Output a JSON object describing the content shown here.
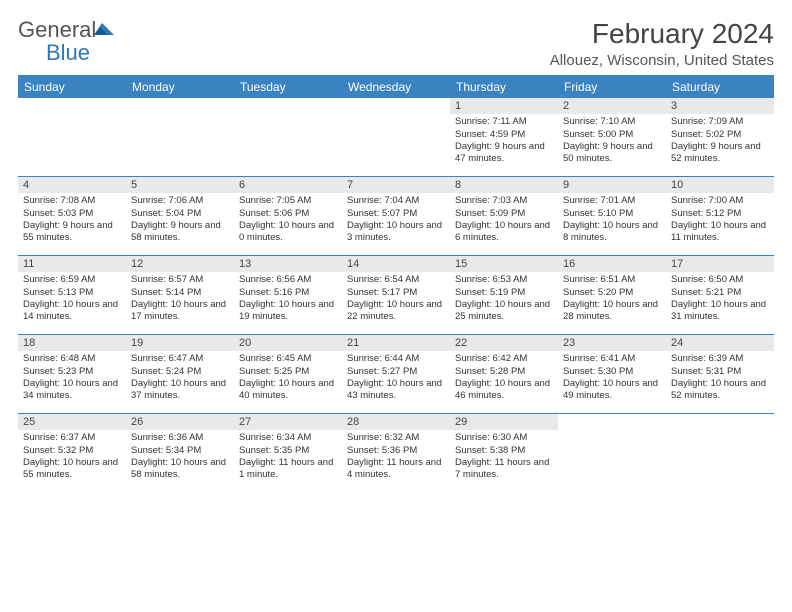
{
  "logo": {
    "text1": "General",
    "text2": "Blue"
  },
  "title": "February 2024",
  "location": "Allouez, Wisconsin, United States",
  "colors": {
    "header_bg": "#3b83c0",
    "header_text": "#ffffff",
    "row_border": "#3b83c0",
    "daynum_bg": "#e9e9e9",
    "text": "#333333",
    "logo_gray": "#555555",
    "logo_blue": "#2b78bc"
  },
  "day_headers": [
    "Sunday",
    "Monday",
    "Tuesday",
    "Wednesday",
    "Thursday",
    "Friday",
    "Saturday"
  ],
  "weeks": [
    [
      {
        "n": "",
        "sunrise": "",
        "sunset": "",
        "daylight": ""
      },
      {
        "n": "",
        "sunrise": "",
        "sunset": "",
        "daylight": ""
      },
      {
        "n": "",
        "sunrise": "",
        "sunset": "",
        "daylight": ""
      },
      {
        "n": "",
        "sunrise": "",
        "sunset": "",
        "daylight": ""
      },
      {
        "n": "1",
        "sunrise": "Sunrise: 7:11 AM",
        "sunset": "Sunset: 4:59 PM",
        "daylight": "Daylight: 9 hours and 47 minutes."
      },
      {
        "n": "2",
        "sunrise": "Sunrise: 7:10 AM",
        "sunset": "Sunset: 5:00 PM",
        "daylight": "Daylight: 9 hours and 50 minutes."
      },
      {
        "n": "3",
        "sunrise": "Sunrise: 7:09 AM",
        "sunset": "Sunset: 5:02 PM",
        "daylight": "Daylight: 9 hours and 52 minutes."
      }
    ],
    [
      {
        "n": "4",
        "sunrise": "Sunrise: 7:08 AM",
        "sunset": "Sunset: 5:03 PM",
        "daylight": "Daylight: 9 hours and 55 minutes."
      },
      {
        "n": "5",
        "sunrise": "Sunrise: 7:06 AM",
        "sunset": "Sunset: 5:04 PM",
        "daylight": "Daylight: 9 hours and 58 minutes."
      },
      {
        "n": "6",
        "sunrise": "Sunrise: 7:05 AM",
        "sunset": "Sunset: 5:06 PM",
        "daylight": "Daylight: 10 hours and 0 minutes."
      },
      {
        "n": "7",
        "sunrise": "Sunrise: 7:04 AM",
        "sunset": "Sunset: 5:07 PM",
        "daylight": "Daylight: 10 hours and 3 minutes."
      },
      {
        "n": "8",
        "sunrise": "Sunrise: 7:03 AM",
        "sunset": "Sunset: 5:09 PM",
        "daylight": "Daylight: 10 hours and 6 minutes."
      },
      {
        "n": "9",
        "sunrise": "Sunrise: 7:01 AM",
        "sunset": "Sunset: 5:10 PM",
        "daylight": "Daylight: 10 hours and 8 minutes."
      },
      {
        "n": "10",
        "sunrise": "Sunrise: 7:00 AM",
        "sunset": "Sunset: 5:12 PM",
        "daylight": "Daylight: 10 hours and 11 minutes."
      }
    ],
    [
      {
        "n": "11",
        "sunrise": "Sunrise: 6:59 AM",
        "sunset": "Sunset: 5:13 PM",
        "daylight": "Daylight: 10 hours and 14 minutes."
      },
      {
        "n": "12",
        "sunrise": "Sunrise: 6:57 AM",
        "sunset": "Sunset: 5:14 PM",
        "daylight": "Daylight: 10 hours and 17 minutes."
      },
      {
        "n": "13",
        "sunrise": "Sunrise: 6:56 AM",
        "sunset": "Sunset: 5:16 PM",
        "daylight": "Daylight: 10 hours and 19 minutes."
      },
      {
        "n": "14",
        "sunrise": "Sunrise: 6:54 AM",
        "sunset": "Sunset: 5:17 PM",
        "daylight": "Daylight: 10 hours and 22 minutes."
      },
      {
        "n": "15",
        "sunrise": "Sunrise: 6:53 AM",
        "sunset": "Sunset: 5:19 PM",
        "daylight": "Daylight: 10 hours and 25 minutes."
      },
      {
        "n": "16",
        "sunrise": "Sunrise: 6:51 AM",
        "sunset": "Sunset: 5:20 PM",
        "daylight": "Daylight: 10 hours and 28 minutes."
      },
      {
        "n": "17",
        "sunrise": "Sunrise: 6:50 AM",
        "sunset": "Sunset: 5:21 PM",
        "daylight": "Daylight: 10 hours and 31 minutes."
      }
    ],
    [
      {
        "n": "18",
        "sunrise": "Sunrise: 6:48 AM",
        "sunset": "Sunset: 5:23 PM",
        "daylight": "Daylight: 10 hours and 34 minutes."
      },
      {
        "n": "19",
        "sunrise": "Sunrise: 6:47 AM",
        "sunset": "Sunset: 5:24 PM",
        "daylight": "Daylight: 10 hours and 37 minutes."
      },
      {
        "n": "20",
        "sunrise": "Sunrise: 6:45 AM",
        "sunset": "Sunset: 5:25 PM",
        "daylight": "Daylight: 10 hours and 40 minutes."
      },
      {
        "n": "21",
        "sunrise": "Sunrise: 6:44 AM",
        "sunset": "Sunset: 5:27 PM",
        "daylight": "Daylight: 10 hours and 43 minutes."
      },
      {
        "n": "22",
        "sunrise": "Sunrise: 6:42 AM",
        "sunset": "Sunset: 5:28 PM",
        "daylight": "Daylight: 10 hours and 46 minutes."
      },
      {
        "n": "23",
        "sunrise": "Sunrise: 6:41 AM",
        "sunset": "Sunset: 5:30 PM",
        "daylight": "Daylight: 10 hours and 49 minutes."
      },
      {
        "n": "24",
        "sunrise": "Sunrise: 6:39 AM",
        "sunset": "Sunset: 5:31 PM",
        "daylight": "Daylight: 10 hours and 52 minutes."
      }
    ],
    [
      {
        "n": "25",
        "sunrise": "Sunrise: 6:37 AM",
        "sunset": "Sunset: 5:32 PM",
        "daylight": "Daylight: 10 hours and 55 minutes."
      },
      {
        "n": "26",
        "sunrise": "Sunrise: 6:36 AM",
        "sunset": "Sunset: 5:34 PM",
        "daylight": "Daylight: 10 hours and 58 minutes."
      },
      {
        "n": "27",
        "sunrise": "Sunrise: 6:34 AM",
        "sunset": "Sunset: 5:35 PM",
        "daylight": "Daylight: 11 hours and 1 minute."
      },
      {
        "n": "28",
        "sunrise": "Sunrise: 6:32 AM",
        "sunset": "Sunset: 5:36 PM",
        "daylight": "Daylight: 11 hours and 4 minutes."
      },
      {
        "n": "29",
        "sunrise": "Sunrise: 6:30 AM",
        "sunset": "Sunset: 5:38 PM",
        "daylight": "Daylight: 11 hours and 7 minutes."
      },
      {
        "n": "",
        "sunrise": "",
        "sunset": "",
        "daylight": ""
      },
      {
        "n": "",
        "sunrise": "",
        "sunset": "",
        "daylight": ""
      }
    ]
  ]
}
